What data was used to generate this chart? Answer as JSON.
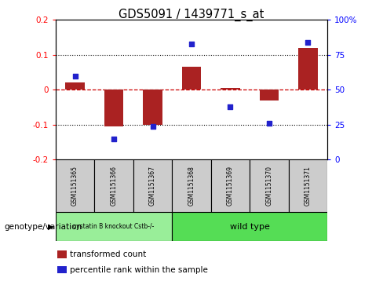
{
  "title": "GDS5091 / 1439771_s_at",
  "samples": [
    "GSM1151365",
    "GSM1151366",
    "GSM1151367",
    "GSM1151368",
    "GSM1151369",
    "GSM1151370",
    "GSM1151371"
  ],
  "transformed_count": [
    0.02,
    -0.105,
    -0.1,
    0.065,
    0.005,
    -0.03,
    0.12
  ],
  "percentile_rank": [
    60,
    15,
    24,
    83,
    38,
    26,
    84
  ],
  "ylim_left": [
    -0.2,
    0.2
  ],
  "ylim_right": [
    0,
    100
  ],
  "yticks_left": [
    -0.2,
    -0.1,
    0.0,
    0.1,
    0.2
  ],
  "ytick_labels_left": [
    "-0.2",
    "-0.1",
    "0",
    "0.1",
    "0.2"
  ],
  "yticks_right": [
    0,
    25,
    50,
    75,
    100
  ],
  "ytick_labels_right": [
    "0",
    "25",
    "50",
    "75",
    "100%"
  ],
  "bar_color": "#aa2222",
  "dot_color": "#2222cc",
  "zero_line_color": "#cc0000",
  "dotted_line_color": "#000000",
  "background_plot": "#ffffff",
  "genotype_group1_label": "cystatin B knockout Cstb-/-",
  "genotype_group1_color": "#99ee99",
  "genotype_group2_label": "wild type",
  "genotype_group2_color": "#55dd55",
  "genotype_group1_count": 3,
  "genotype_group2_count": 4,
  "legend_transformed": "transformed count",
  "legend_percentile": "percentile rank within the sample",
  "genotype_label": "genotype/variation",
  "sample_box_color": "#cccccc"
}
